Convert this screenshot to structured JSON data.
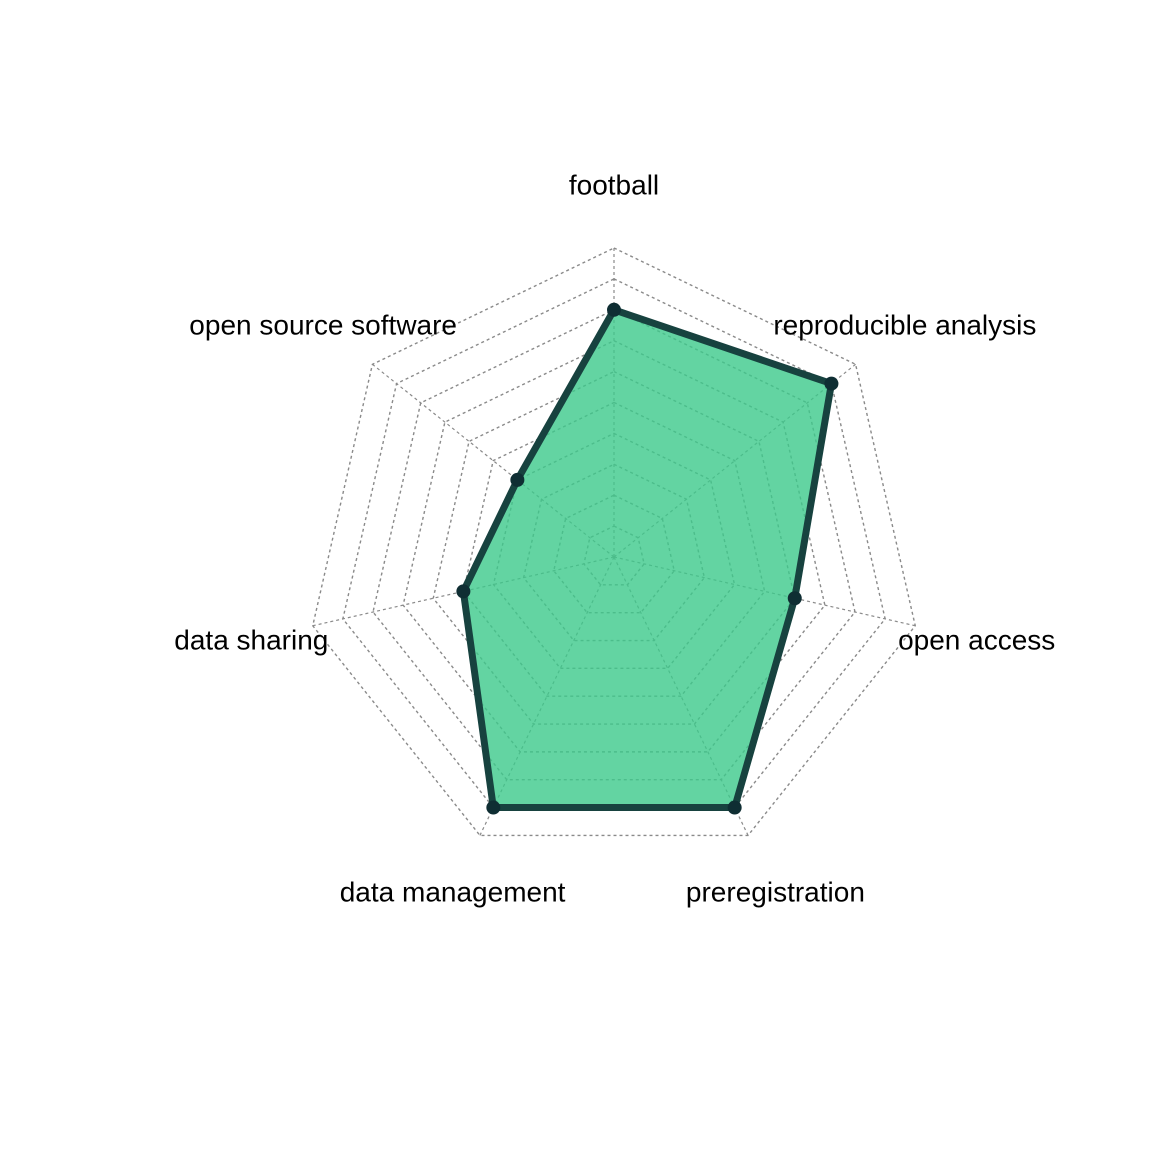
{
  "chart_data": {
    "type": "radar",
    "axes": [
      "football",
      "reproducible analysis",
      "open access",
      "preregistration",
      "data management",
      "data sharing",
      "open source software"
    ],
    "values": [
      8,
      9,
      6,
      9,
      9,
      5,
      4
    ],
    "range": [
      0,
      10
    ],
    "grid_levels": 10,
    "grid": true,
    "colors": {
      "fill": "#3cc98b",
      "stroke": "#17423f",
      "grid": "#8a8a8a"
    }
  }
}
